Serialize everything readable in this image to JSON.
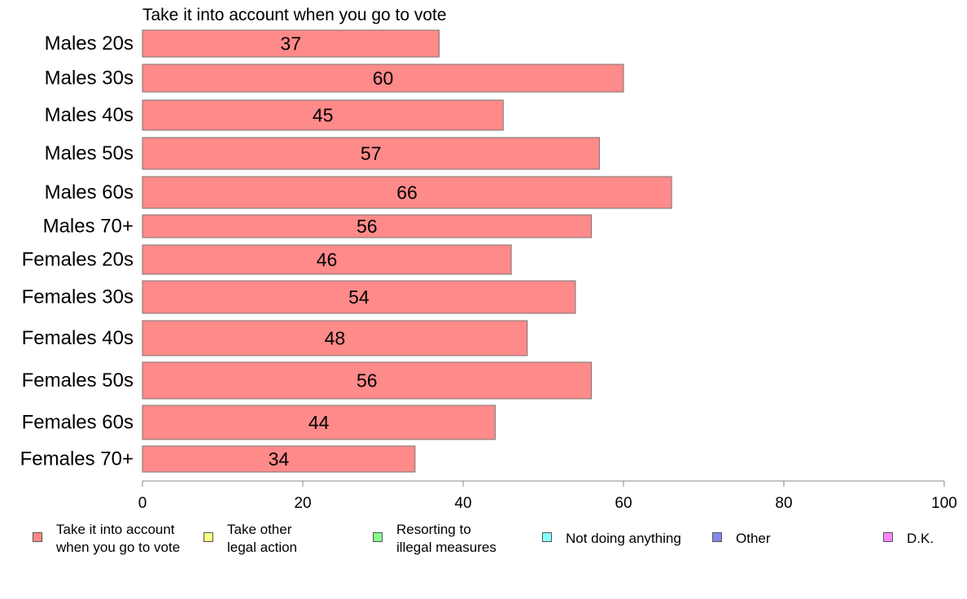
{
  "chart_data": {
    "type": "bar",
    "orientation": "horizontal",
    "title": "Take it into account when you go to vote",
    "categories": [
      "Males 20s",
      "Males 30s",
      "Males 40s",
      "Males 50s",
      "Males 60s",
      "Males 70+",
      "Females 20s",
      "Females 30s",
      "Females 40s",
      "Females 50s",
      "Females 60s",
      "Females 70+"
    ],
    "values": [
      37,
      60,
      45,
      57,
      66,
      56,
      46,
      54,
      48,
      56,
      44,
      34
    ],
    "xlim": [
      0,
      100
    ],
    "xticks": [
      0,
      20,
      40,
      60,
      80,
      100
    ],
    "xlabel": "",
    "ylabel": "",
    "grid": false,
    "bar_color": "#ff8a8a",
    "legend_position": "bottom",
    "legend": [
      {
        "label": "Take it into account\nwhen you go to vote",
        "color": "#ff8a8a"
      },
      {
        "label": "Take other\nlegal action",
        "color": "#ffff88"
      },
      {
        "label": "Resorting to\nillegal measures",
        "color": "#88ff88"
      },
      {
        "label": "Not doing anything",
        "color": "#88ffff"
      },
      {
        "label": "Other",
        "color": "#8888ee"
      },
      {
        "label": "D.K.",
        "color": "#ff88ff"
      }
    ]
  }
}
